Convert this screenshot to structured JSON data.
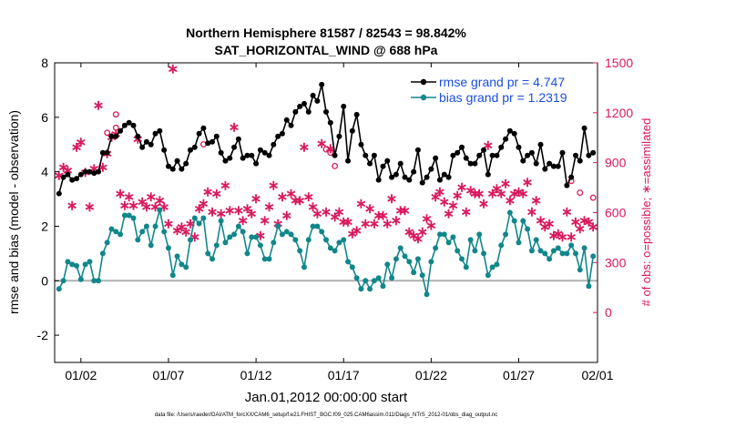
{
  "chart_data": {
    "type": "line",
    "title": "Northern Hemisphere 81587 / 82543 = 98.842%",
    "subtitle": "SAT_HORIZONTAL_WIND @ 688 hPa",
    "xlabel": "Jan.01,2012 00:00:00 start",
    "ylabel": "rmse and bias (model - observation)",
    "y2label": "# of obs: o=possible; ∗=assimilated",
    "footnote": "data file: /Users/raeder/DAI/ATM_forcXX/CAM6_setup/f.e21.FHIST_BGC.f09_025.CAM6assim.011/Diags_NTrS_2012-01/obs_diag_output.nc",
    "xlim": [
      0.5,
      31.5
    ],
    "ylim": [
      -3,
      8
    ],
    "y2lim": [
      -300,
      1500
    ],
    "x_ticks": [
      {
        "x": 2,
        "label": "01/02"
      },
      {
        "x": 7,
        "label": "01/07"
      },
      {
        "x": 12,
        "label": "01/12"
      },
      {
        "x": 17,
        "label": "01/17"
      },
      {
        "x": 22,
        "label": "01/22"
      },
      {
        "x": 27,
        "label": "01/27"
      },
      {
        "x": 31.5,
        "label": "02/01"
      }
    ],
    "y_ticks": [
      -2,
      0,
      2,
      4,
      6,
      8
    ],
    "y2_ticks": [
      0,
      300,
      600,
      900,
      1200,
      1500
    ],
    "zero_line": 0,
    "legend_position": "top-right",
    "colors": {
      "rmse": "#000000",
      "bias": "#11878a",
      "obs": "#d8195e",
      "legend_text": "#1a4fe0",
      "zero_line": "#b0b0b0"
    },
    "series": [
      {
        "name": "rmse grand pr = 4.747",
        "key": "rmse",
        "marker": "filled-circle",
        "x": [
          0.75,
          1,
          1.25,
          1.5,
          1.75,
          2,
          2.25,
          2.5,
          2.75,
          3,
          3.25,
          3.5,
          3.75,
          4,
          4.25,
          4.5,
          4.75,
          5,
          5.25,
          5.5,
          5.75,
          6,
          6.25,
          6.5,
          6.75,
          7,
          7.25,
          7.5,
          7.75,
          8,
          8.25,
          8.5,
          8.75,
          9,
          9.25,
          9.5,
          9.75,
          10,
          10.25,
          10.5,
          10.75,
          11,
          11.25,
          11.5,
          11.75,
          12,
          12.25,
          12.5,
          12.75,
          13,
          13.25,
          13.5,
          13.75,
          14,
          14.25,
          14.5,
          14.75,
          15,
          15.25,
          15.5,
          15.75,
          16,
          16.25,
          16.5,
          16.75,
          17,
          17.25,
          17.5,
          17.75,
          18,
          18.25,
          18.5,
          18.75,
          19,
          19.25,
          19.5,
          19.75,
          20,
          20.25,
          20.5,
          20.75,
          21,
          21.25,
          21.5,
          21.75,
          22,
          22.25,
          22.5,
          22.75,
          23,
          23.25,
          23.5,
          23.75,
          24,
          24.25,
          24.5,
          24.75,
          25,
          25.25,
          25.5,
          25.75,
          26,
          26.25,
          26.5,
          26.75,
          27,
          27.25,
          27.5,
          27.75,
          28,
          28.25,
          28.5,
          28.75,
          29,
          29.25,
          29.5,
          29.75,
          30,
          30.25,
          30.5,
          30.75,
          31,
          31.25
        ],
        "y": [
          3.2,
          3.8,
          3.9,
          3.7,
          3.75,
          3.9,
          4.0,
          4.0,
          3.95,
          4.0,
          4.7,
          4.7,
          5.3,
          5.3,
          5.5,
          5.7,
          5.8,
          5.7,
          5.3,
          4.9,
          5.1,
          5.0,
          5.4,
          5.5,
          4.8,
          4.2,
          4.1,
          4.4,
          4.1,
          4.3,
          4.8,
          4.9,
          5.4,
          5.6,
          5.05,
          5.1,
          5.3,
          4.7,
          4.4,
          4.5,
          4.9,
          5.2,
          4.5,
          4.6,
          4.6,
          4.3,
          4.8,
          4.7,
          4.6,
          5.0,
          5.3,
          5.4,
          5.9,
          5.7,
          6.2,
          6.4,
          6.5,
          6.2,
          6.8,
          6.6,
          7.2,
          6.2,
          5.8,
          4.6,
          5.3,
          6.4,
          4.4,
          5.5,
          6.1,
          5.0,
          4.6,
          4.3,
          4.6,
          3.7,
          4.2,
          4.4,
          3.8,
          3.9,
          4.3,
          3.8,
          3.7,
          4.0,
          4.8,
          3.6,
          3.8,
          4.1,
          4.5,
          3.7,
          3.9,
          3.8,
          4.6,
          4.7,
          4.9,
          4.5,
          4.3,
          4.3,
          4.6,
          4.8,
          3.9,
          4.6,
          4.6,
          4.9,
          5.2,
          5.5,
          5.4,
          4.9,
          4.4,
          4.6,
          4.7,
          4.3,
          5.0,
          4.1,
          4.3,
          4.2,
          4.2,
          4.7,
          3.5,
          3.8,
          4.6,
          4.4,
          5.6,
          4.6,
          4.7
        ]
      },
      {
        "name": "bias grand pr = 1.2319",
        "key": "bias",
        "marker": "filled-circle",
        "x": [
          0.75,
          1,
          1.25,
          1.5,
          1.75,
          2,
          2.25,
          2.5,
          2.75,
          3,
          3.25,
          3.5,
          3.75,
          4,
          4.25,
          4.5,
          4.75,
          5,
          5.25,
          5.5,
          5.75,
          6,
          6.25,
          6.5,
          6.75,
          7,
          7.25,
          7.5,
          7.75,
          8,
          8.25,
          8.5,
          8.75,
          9,
          9.25,
          9.5,
          9.75,
          10,
          10.25,
          10.5,
          10.75,
          11,
          11.25,
          11.5,
          11.75,
          12,
          12.25,
          12.5,
          12.75,
          13,
          13.25,
          13.5,
          13.75,
          14,
          14.25,
          14.5,
          14.75,
          15,
          15.25,
          15.5,
          15.75,
          16,
          16.25,
          16.5,
          16.75,
          17,
          17.25,
          17.5,
          17.75,
          18,
          18.25,
          18.5,
          18.75,
          19,
          19.25,
          19.5,
          19.75,
          20,
          20.25,
          20.5,
          20.75,
          21,
          21.25,
          21.5,
          21.75,
          22,
          22.25,
          22.5,
          22.75,
          23,
          23.25,
          23.5,
          23.75,
          24,
          24.25,
          24.5,
          24.75,
          25,
          25.25,
          25.5,
          25.75,
          26,
          26.25,
          26.5,
          26.75,
          27,
          27.25,
          27.5,
          27.75,
          28,
          28.25,
          28.5,
          28.75,
          29,
          29.25,
          29.5,
          29.75,
          30,
          30.25,
          30.5,
          30.75,
          31,
          31.25
        ],
        "y": [
          -0.3,
          0.0,
          0.7,
          0.6,
          0.55,
          0.05,
          0.6,
          0.7,
          0.0,
          0.0,
          1.0,
          1.4,
          1.9,
          1.8,
          1.7,
          2.4,
          2.4,
          2.3,
          1.5,
          1.8,
          2.0,
          1.3,
          2.0,
          2.6,
          1.8,
          1.2,
          0.2,
          0.9,
          0.6,
          0.5,
          1.5,
          2.3,
          2.1,
          2.3,
          1.0,
          0.8,
          1.3,
          2.2,
          1.4,
          1.6,
          1.7,
          2.0,
          1.8,
          1.0,
          1.6,
          1.6,
          1.3,
          0.8,
          0.8,
          1.4,
          2.0,
          1.7,
          1.8,
          1.7,
          1.5,
          1.1,
          0.5,
          1.5,
          2.0,
          2.0,
          1.8,
          1.5,
          1.2,
          1.1,
          1.4,
          1.5,
          0.7,
          0.5,
          0.1,
          -0.3,
          0.0,
          -0.3,
          0.0,
          0.1,
          -0.2,
          0.6,
          0.1,
          0.8,
          1.2,
          0.9,
          0.7,
          0.3,
          0.8,
          0.2,
          -0.5,
          0.7,
          1.2,
          1.7,
          1.7,
          1.4,
          1.6,
          1.1,
          0.8,
          0.5,
          1.5,
          1.1,
          1.7,
          1.0,
          0.2,
          0.5,
          0.6,
          1.3,
          1.7,
          2.5,
          2.2,
          1.4,
          2.2,
          1.9,
          1.1,
          1.5,
          1.1,
          1.0,
          0.8,
          1.1,
          1.2,
          1.0,
          1.0,
          1.3,
          1.0,
          0.4,
          1.2,
          -0.2,
          0.9
        ]
      }
    ],
    "obs_assimilated": {
      "marker": "asterisk",
      "axis": "right",
      "x": [
        0.75,
        1,
        1.25,
        1.5,
        1.75,
        2,
        2.25,
        2.5,
        2.75,
        3,
        3.25,
        3.5,
        3.75,
        4,
        4.25,
        4.5,
        4.75,
        5,
        5.25,
        5.5,
        5.75,
        6,
        6.25,
        6.5,
        6.75,
        7,
        7.25,
        7.5,
        7.75,
        8,
        8.25,
        8.5,
        8.75,
        9,
        9.25,
        9.5,
        9.75,
        10,
        10.25,
        10.5,
        10.75,
        11,
        11.25,
        11.5,
        11.75,
        12,
        12.25,
        12.5,
        12.75,
        13,
        13.25,
        13.5,
        13.75,
        14,
        14.25,
        14.5,
        14.75,
        15,
        15.25,
        15.5,
        15.75,
        16,
        16.25,
        16.5,
        16.75,
        17,
        17.25,
        17.5,
        17.75,
        18,
        18.25,
        18.5,
        18.75,
        19,
        19.25,
        19.5,
        19.75,
        20,
        20.25,
        20.5,
        20.75,
        21,
        21.25,
        21.5,
        21.75,
        22,
        22.25,
        22.5,
        22.75,
        23,
        23.25,
        23.5,
        23.75,
        24,
        24.25,
        24.5,
        24.75,
        25,
        25.25,
        25.5,
        25.75,
        26,
        26.25,
        26.5,
        26.75,
        27,
        27.25,
        27.5,
        27.75,
        28,
        28.25,
        28.5,
        28.75,
        29,
        29.25,
        29.5,
        29.75,
        30,
        30.25,
        30.5,
        30.75,
        31,
        31.25
      ],
      "y": [
        830,
        880,
        860,
        650,
        1000,
        1030,
        850,
        640,
        870,
        1250,
        880,
        960,
        1060,
        1080,
        720,
        650,
        700,
        650,
        1050,
        670,
        640,
        700,
        640,
        680,
        640,
        540,
        1470,
        500,
        520,
        490,
        540,
        460,
        630,
        660,
        730,
        610,
        720,
        600,
        770,
        620,
        1120,
        620,
        560,
        630,
        600,
        690,
        470,
        560,
        640,
        770,
        540,
        700,
        590,
        720,
        680,
        680,
        1000,
        700,
        640,
        600,
        1020,
        610,
        990,
        580,
        610,
        550,
        550,
        480,
        500,
        660,
        540,
        630,
        540,
        590,
        590,
        540,
        690,
        560,
        620,
        620,
        490,
        470,
        450,
        490,
        570,
        530,
        700,
        730,
        670,
        600,
        650,
        710,
        760,
        610,
        740,
        720,
        720,
        660,
        1010,
        720,
        750,
        720,
        780,
        680,
        720,
        730,
        720,
        790,
        610,
        680,
        560,
        520,
        540,
        470,
        480,
        460,
        610,
        460,
        550,
        510,
        560,
        550,
        520
      ]
    },
    "obs_possible": {
      "marker": "open-circle",
      "axis": "right",
      "x": [
        3.5,
        4.0,
        4.0,
        9.0,
        16.0,
        16.25,
        16.5,
        30.0,
        30.5,
        31.25
      ],
      "y": [
        1080,
        1110,
        1190,
        1010,
        980,
        960,
        880,
        790,
        720,
        690
      ]
    }
  }
}
